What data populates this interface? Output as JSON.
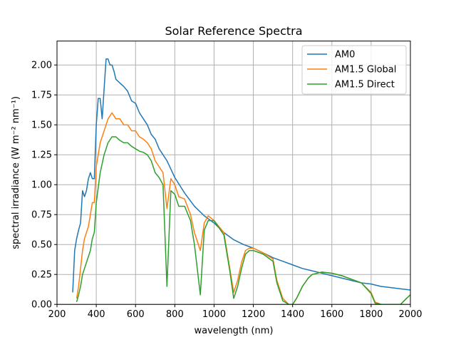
{
  "chart_data": {
    "type": "line",
    "title": "Solar Reference Spectra",
    "xlabel": "wavelength (nm)",
    "ylabel": "spectral irradiance (W m⁻² nm⁻¹)",
    "xlim": [
      200,
      2000
    ],
    "ylim": [
      0,
      2.2
    ],
    "xticks": [
      200,
      400,
      600,
      800,
      1000,
      1200,
      1400,
      1600,
      1800,
      2000
    ],
    "xtick_labels": [
      "200",
      "400",
      "600",
      "800",
      "1000",
      "1200",
      "1400",
      "1600",
      "1800",
      "2000"
    ],
    "yticks": [
      0,
      0.25,
      0.5,
      0.75,
      1.0,
      1.25,
      1.5,
      1.75,
      2.0
    ],
    "ytick_labels": [
      "0.00",
      "0.25",
      "0.50",
      "0.75",
      "1.00",
      "1.25",
      "1.50",
      "1.75",
      "2.00"
    ],
    "grid": true,
    "legend_position": "top-right",
    "series": [
      {
        "name": "AM0",
        "color": "#1f77b4",
        "x": [
          280,
          290,
          300,
          310,
          320,
          330,
          340,
          350,
          360,
          370,
          380,
          390,
          400,
          410,
          420,
          430,
          440,
          450,
          460,
          470,
          480,
          490,
          500,
          520,
          540,
          560,
          580,
          600,
          620,
          640,
          660,
          680,
          700,
          720,
          740,
          760,
          780,
          800,
          850,
          900,
          950,
          1000,
          1050,
          1100,
          1150,
          1200,
          1250,
          1300,
          1350,
          1400,
          1450,
          1500,
          1550,
          1600,
          1650,
          1700,
          1750,
          1800,
          1850,
          1900,
          1950,
          2000
        ],
        "y": [
          0.1,
          0.45,
          0.55,
          0.62,
          0.68,
          0.95,
          0.9,
          0.95,
          1.05,
          1.1,
          1.05,
          1.05,
          1.5,
          1.72,
          1.72,
          1.55,
          1.8,
          2.05,
          2.05,
          2.0,
          2.0,
          1.95,
          1.88,
          1.85,
          1.82,
          1.78,
          1.7,
          1.68,
          1.6,
          1.55,
          1.5,
          1.42,
          1.38,
          1.3,
          1.25,
          1.2,
          1.13,
          1.06,
          0.93,
          0.82,
          0.74,
          0.68,
          0.6,
          0.54,
          0.5,
          0.47,
          0.43,
          0.39,
          0.36,
          0.33,
          0.3,
          0.28,
          0.26,
          0.24,
          0.22,
          0.2,
          0.18,
          0.17,
          0.15,
          0.14,
          0.13,
          0.12
        ]
      },
      {
        "name": "AM1.5 Global",
        "color": "#ff7f0e",
        "x": [
          300,
          310,
          320,
          330,
          340,
          350,
          360,
          370,
          380,
          390,
          400,
          420,
          440,
          460,
          480,
          500,
          520,
          540,
          560,
          580,
          600,
          620,
          640,
          660,
          680,
          700,
          720,
          740,
          760,
          780,
          800,
          820,
          850,
          880,
          900,
          930,
          950,
          970,
          1000,
          1050,
          1080,
          1100,
          1120,
          1140,
          1160,
          1180,
          1200,
          1250,
          1300,
          1320,
          1350,
          1380,
          1400,
          1420,
          1450,
          1480,
          1500,
          1550,
          1600,
          1650,
          1700,
          1750,
          1800,
          1820,
          1850,
          1900,
          1950,
          1980,
          2000
        ],
        "y": [
          0.05,
          0.15,
          0.3,
          0.45,
          0.55,
          0.6,
          0.65,
          0.75,
          0.85,
          0.85,
          1.15,
          1.35,
          1.45,
          1.55,
          1.6,
          1.55,
          1.55,
          1.5,
          1.5,
          1.45,
          1.45,
          1.4,
          1.38,
          1.35,
          1.3,
          1.2,
          1.15,
          1.1,
          0.8,
          1.05,
          1.0,
          0.9,
          0.88,
          0.75,
          0.6,
          0.45,
          0.68,
          0.74,
          0.7,
          0.6,
          0.3,
          0.1,
          0.2,
          0.35,
          0.45,
          0.47,
          0.47,
          0.43,
          0.38,
          0.2,
          0.05,
          0.0,
          0.0,
          0.05,
          0.15,
          0.22,
          0.25,
          0.27,
          0.26,
          0.24,
          0.21,
          0.18,
          0.1,
          0.02,
          0.0,
          0.0,
          0.0,
          0.05,
          0.08
        ]
      },
      {
        "name": "AM1.5 Direct",
        "color": "#2ca02c",
        "x": [
          300,
          310,
          320,
          330,
          340,
          350,
          360,
          370,
          380,
          390,
          400,
          420,
          440,
          460,
          480,
          500,
          520,
          540,
          560,
          580,
          600,
          620,
          640,
          660,
          680,
          700,
          720,
          740,
          760,
          780,
          800,
          820,
          850,
          880,
          900,
          930,
          950,
          970,
          1000,
          1050,
          1080,
          1100,
          1120,
          1140,
          1160,
          1180,
          1200,
          1250,
          1300,
          1320,
          1350,
          1380,
          1400,
          1420,
          1450,
          1480,
          1500,
          1550,
          1600,
          1650,
          1700,
          1750,
          1800,
          1820,
          1850,
          1900,
          1950,
          1980,
          2000
        ],
        "y": [
          0.02,
          0.08,
          0.15,
          0.25,
          0.3,
          0.35,
          0.4,
          0.45,
          0.55,
          0.6,
          0.85,
          1.1,
          1.25,
          1.35,
          1.4,
          1.4,
          1.37,
          1.35,
          1.35,
          1.32,
          1.3,
          1.28,
          1.27,
          1.25,
          1.2,
          1.1,
          1.06,
          1.0,
          0.15,
          0.95,
          0.92,
          0.82,
          0.82,
          0.7,
          0.5,
          0.08,
          0.62,
          0.7,
          0.7,
          0.58,
          0.28,
          0.05,
          0.15,
          0.3,
          0.42,
          0.45,
          0.45,
          0.42,
          0.36,
          0.18,
          0.03,
          0.0,
          0.0,
          0.05,
          0.15,
          0.22,
          0.25,
          0.27,
          0.26,
          0.24,
          0.21,
          0.18,
          0.09,
          0.01,
          0.0,
          0.0,
          0.0,
          0.05,
          0.08
        ]
      }
    ]
  }
}
